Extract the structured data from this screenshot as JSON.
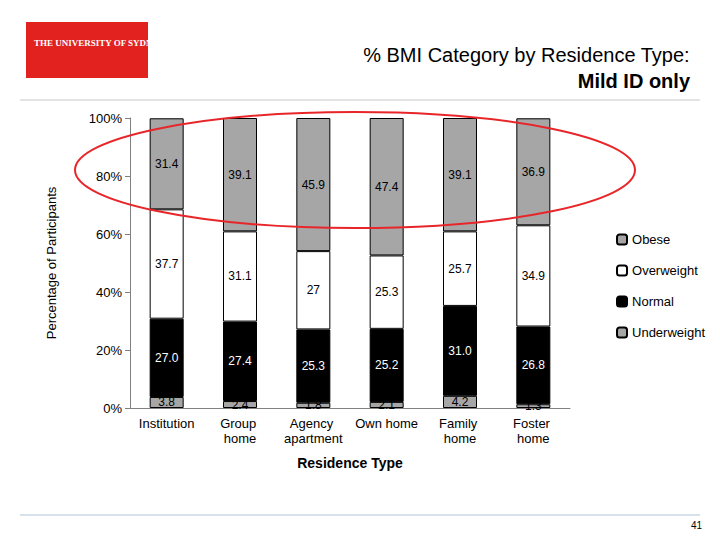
{
  "chart_data": {
    "type": "bar",
    "title": "% BMI Category by Residence Type:",
    "subtitle": "Mild ID only",
    "x_label": "Residence Type",
    "y_label": "Percentage of Participants",
    "categories": [
      "Institution",
      "Group home",
      "Agency apartment",
      "Own home",
      "Family home",
      "Foster home"
    ],
    "series": [
      {
        "name": "Underweight",
        "color": "#a6a6a6",
        "values": [
          3.8,
          2.4,
          1.8,
          2.1,
          4.2,
          1.3
        ],
        "value_labels": [
          "3.8",
          "2.4",
          "1.8",
          "2.1",
          "4.2",
          "1.3"
        ]
      },
      {
        "name": "Normal",
        "color": "#000000",
        "values": [
          27.0,
          27.4,
          25.3,
          25.2,
          31.0,
          26.8
        ],
        "value_labels": [
          "27.0",
          "27.4",
          "25.3",
          "25.2",
          "31.0",
          "26.8"
        ]
      },
      {
        "name": "Overweight",
        "color": "#ffffff",
        "values": [
          37.7,
          31.1,
          27,
          25.3,
          25.7,
          34.9
        ],
        "value_labels": [
          "37.7",
          "31.1",
          "27",
          "25.3",
          "25.7",
          "34.9"
        ]
      },
      {
        "name": "Obese",
        "color": "#a6a6a6",
        "values": [
          31.4,
          39.1,
          45.9,
          47.4,
          39.1,
          36.9
        ],
        "value_labels": [
          "31.4",
          "39.1",
          "45.9",
          "47.4",
          "39.1",
          "36.9"
        ]
      }
    ],
    "stacked": true,
    "data_labels": true,
    "legend": "right",
    "grid": false,
    "ylim": [
      0,
      100
    ],
    "yticks": [
      {
        "value": 0,
        "label": "0%"
      },
      {
        "value": 20,
        "label": "20%"
      },
      {
        "value": 40,
        "label": "40%"
      },
      {
        "value": 60,
        "label": "60%"
      },
      {
        "value": 80,
        "label": "80%"
      },
      {
        "value": 100,
        "label": "100%"
      }
    ],
    "annotations": [
      "THE UNIVERSITY OF SYDNEY",
      "41"
    ]
  }
}
